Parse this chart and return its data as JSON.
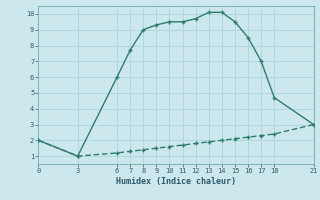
{
  "xlabel": "Humidex (Indice chaleur)",
  "curve1_x": [
    0,
    3,
    6,
    7,
    8,
    9,
    10,
    11,
    12,
    13,
    14,
    15,
    16,
    17,
    18,
    21
  ],
  "curve1_y": [
    2,
    1,
    6,
    7.7,
    9.0,
    9.3,
    9.5,
    9.5,
    9.7,
    10.1,
    10.1,
    9.5,
    8.5,
    7.0,
    4.7,
    3.0
  ],
  "curve2_x": [
    0,
    3,
    6,
    7,
    8,
    9,
    10,
    11,
    12,
    13,
    14,
    15,
    16,
    17,
    18,
    21
  ],
  "curve2_y": [
    2.0,
    1.0,
    1.2,
    1.3,
    1.4,
    1.5,
    1.6,
    1.7,
    1.8,
    1.9,
    2.0,
    2.1,
    2.2,
    2.3,
    2.4,
    3.0
  ],
  "line_color": "#2d7d6e",
  "bg_color": "#cce8ec",
  "grid_color": "#b0d8dc",
  "xlim": [
    0,
    21
  ],
  "ylim": [
    0.5,
    10.5
  ],
  "xticks": [
    0,
    3,
    6,
    7,
    8,
    9,
    10,
    11,
    12,
    13,
    14,
    15,
    16,
    17,
    18,
    21
  ],
  "yticks": [
    1,
    2,
    3,
    4,
    5,
    6,
    7,
    8,
    9,
    10
  ],
  "marker_size": 3,
  "line_width": 1.0
}
